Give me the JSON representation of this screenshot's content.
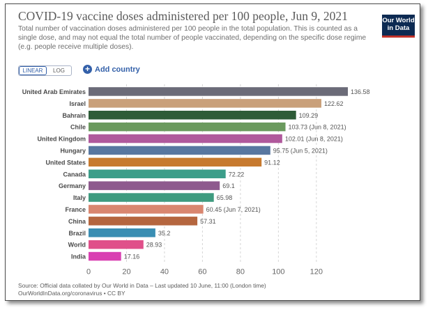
{
  "header": {
    "title": "COVID-19 vaccine doses administered per 100 people, Jun 9, 2021",
    "subtitle": "Total number of vaccination doses administered per 100 people in the total population. This is counted as a single dose, and may not equal the total number of people vaccinated, depending on the specific dose regime (e.g. people receive multiple doses).",
    "logo_line1": "Our World",
    "logo_line2": "in Data"
  },
  "controls": {
    "linear_label": "LINEAR",
    "log_label": "LOG",
    "add_country_label": "Add country",
    "add_country_icon": "plus-circle-icon"
  },
  "footer": {
    "source": "Source: Official data collated by Our World in Data – Last updated 10 June, 11:00 (London time)",
    "url": "OurWorldInData.org/coronavirus • CC BY"
  },
  "chart_data": {
    "type": "bar",
    "orientation": "horizontal",
    "title": "COVID-19 vaccine doses administered per 100 people, Jun 9, 2021",
    "xlim": [
      0,
      136.58
    ],
    "x_ticks": [
      0,
      20,
      40,
      60,
      80,
      100,
      120
    ],
    "grid": "vertical dashed",
    "categories": [
      "United Arab Emirates",
      "Israel",
      "Bahrain",
      "Chile",
      "United Kingdom",
      "Hungary",
      "United States",
      "Canada",
      "Germany",
      "Italy",
      "France",
      "China",
      "Brazil",
      "World",
      "India"
    ],
    "values": [
      136.58,
      122.62,
      109.29,
      103.73,
      102.01,
      95.75,
      91.12,
      72.22,
      69.1,
      65.98,
      60.45,
      57.31,
      35.2,
      28.93,
      17.16
    ],
    "value_labels": [
      "136.58",
      "122.62",
      "109.29",
      "103.73 (Jun 8, 2021)",
      "102.01 (Jun 8, 2021)",
      "95.75 (Jun 5, 2021)",
      "91.12",
      "72.22",
      "69.1",
      "65.98",
      "60.45 (Jun 7, 2021)",
      "57.31",
      "35.2",
      "28.93",
      "17.16"
    ],
    "colors": [
      "#6b6b78",
      "#c9a07a",
      "#2e5c38",
      "#6b9a5e",
      "#b0599c",
      "#5877a0",
      "#c77a2f",
      "#3c9e8a",
      "#8e5a8e",
      "#3e9b7f",
      "#d9866f",
      "#b5663f",
      "#3a8eb3",
      "#e0508a",
      "#d940b2"
    ]
  }
}
